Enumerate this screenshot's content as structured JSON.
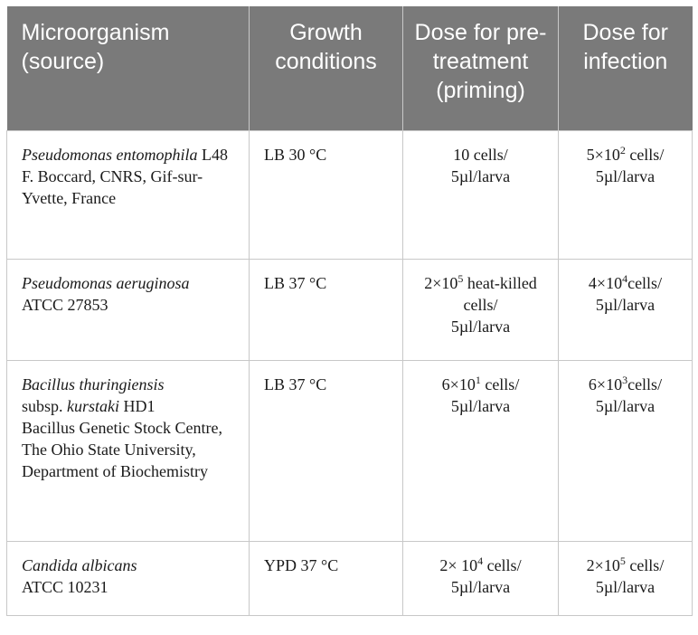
{
  "headers": {
    "microorganism": "Microorganism (source)",
    "growth": "Growth conditions",
    "priming": "Dose for pre-treatment (priming)",
    "infection": "Dose for infection"
  },
  "rows": [
    {
      "species": "Pseudomonas entomophila",
      "strain": " L48",
      "source": "F. Boccard, CNRS, Gif-sur-Yvette, France",
      "growth": "LB 30 °C",
      "priming_pre": "10 cells/",
      "priming_sup": "",
      "priming_post": "",
      "priming_tail": "5µl/larva",
      "infection_pre": "5×10",
      "infection_sup": "2",
      "infection_post": " cells/",
      "infection_tail": "5µl/larva"
    },
    {
      "species": "Pseudomonas aeruginosa",
      "strain": "",
      "source": "ATCC 27853",
      "growth": "LB 37 °C",
      "priming_pre": "2×10",
      "priming_sup": "5",
      "priming_post": " heat-killed cells/",
      "priming_tail": "5µl/larva",
      "infection_pre": "4×10",
      "infection_sup": "4",
      "infection_post": "cells/",
      "infection_tail": "5µl/larva"
    },
    {
      "species": "Bacillus thuringiensis",
      "strain": "",
      "subsp_prefix": "subsp. ",
      "subsp_italic": "kurstaki",
      "subsp_suffix": " HD1",
      "source": "Bacillus Genetic Stock Centre, The Ohio State University, Department of Biochemistry",
      "growth": "LB 37 °C",
      "priming_pre": "6×10",
      "priming_sup": "1",
      "priming_post": " cells/",
      "priming_tail": "5µl/larva",
      "infection_pre": "6×10",
      "infection_sup": "3",
      "infection_post": "cells/",
      "infection_tail": "5µl/larva"
    },
    {
      "species": "Candida albicans",
      "strain": "",
      "source": "ATCC 10231",
      "growth": "YPD 37 °C",
      "priming_pre": "2× 10",
      "priming_sup": "4",
      "priming_post": " cells/",
      "priming_tail": "5µl/larva",
      "infection_pre": "2×10",
      "infection_sup": "5",
      "infection_post": " cells/",
      "infection_tail": "5µl/larva"
    }
  ]
}
